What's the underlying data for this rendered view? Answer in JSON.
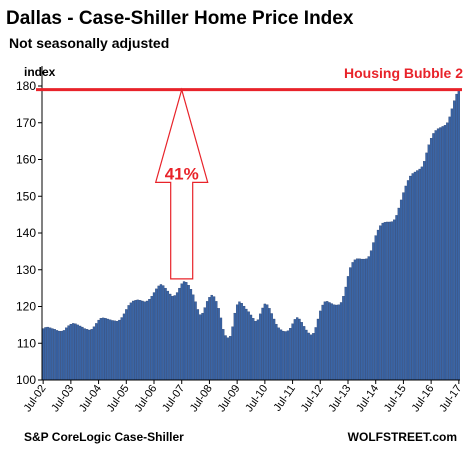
{
  "chart_data": {
    "type": "bar",
    "title": "Dallas - Case-Shiller Home Price Index",
    "subtitle": "Not seasonally adjusted",
    "ylabel": "index",
    "ylim": [
      100,
      180
    ],
    "yticks": [
      100,
      110,
      120,
      130,
      140,
      150,
      160,
      170,
      180
    ],
    "x_tick_labels": [
      "Jul-02",
      "Jul-03",
      "Jul-04",
      "Jul-05",
      "Jul-06",
      "Jul-07",
      "Jul-08",
      "Jul-09",
      "Jul-10",
      "Jul-11",
      "Jul-12",
      "Jul-13",
      "Jul-14",
      "Jul-15",
      "Jul-16",
      "Jul-17"
    ],
    "x_start": "Jul-02",
    "frequency": "monthly",
    "values": [
      114.0,
      114.3,
      114.4,
      114.2,
      114.0,
      113.8,
      113.5,
      113.3,
      113.3,
      113.5,
      114.2,
      114.8,
      115.2,
      115.4,
      115.3,
      115.0,
      114.7,
      114.4,
      114.0,
      113.8,
      113.6,
      113.8,
      114.5,
      115.4,
      116.3,
      116.8,
      116.9,
      116.8,
      116.6,
      116.4,
      116.2,
      116.1,
      116.0,
      116.3,
      117.0,
      118.0,
      119.2,
      120.3,
      121.0,
      121.5,
      121.7,
      121.8,
      121.7,
      121.5,
      121.3,
      121.5,
      122.0,
      122.8,
      123.8,
      124.8,
      125.6,
      126.0,
      125.7,
      125.0,
      124.2,
      123.4,
      122.8,
      123.0,
      123.8,
      125.0,
      126.2,
      126.8,
      126.6,
      125.8,
      124.7,
      123.2,
      121.3,
      119.2,
      117.8,
      118.2,
      119.7,
      121.4,
      122.5,
      123.1,
      122.7,
      121.4,
      119.5,
      116.9,
      113.8,
      112.1,
      111.5,
      111.9,
      114.5,
      118.2,
      120.5,
      121.3,
      120.9,
      120.1,
      119.3,
      118.6,
      117.7,
      116.8,
      116.0,
      116.4,
      118.0,
      119.6,
      120.7,
      120.5,
      119.5,
      118.1,
      116.6,
      115.2,
      114.2,
      113.7,
      113.3,
      113.2,
      113.4,
      114.1,
      115.3,
      116.5,
      117.0,
      116.6,
      115.7,
      114.6,
      113.6,
      112.8,
      112.3,
      112.7,
      114.3,
      116.6,
      118.8,
      120.4,
      121.3,
      121.4,
      121.1,
      120.8,
      120.5,
      120.4,
      120.5,
      121.1,
      122.8,
      125.3,
      128.2,
      130.6,
      132.0,
      132.7,
      133.0,
      133.0,
      132.9,
      132.9,
      133.0,
      133.6,
      135.2,
      137.4,
      139.3,
      140.8,
      142.0,
      142.7,
      142.9,
      143.0,
      143.0,
      143.1,
      143.6,
      144.8,
      146.8,
      149.0,
      151.0,
      152.8,
      154.3,
      155.5,
      156.2,
      156.6,
      157.0,
      157.4,
      158.0,
      159.5,
      161.8,
      164.0,
      165.8,
      167.1,
      167.9,
      168.4,
      168.7,
      169.0,
      169.3,
      170.0,
      171.6,
      173.8,
      176.0,
      177.8,
      179.0
    ],
    "reference_line": {
      "value": 179,
      "label": "Housing Bubble 2"
    },
    "annotation": {
      "label": "41%",
      "arrow_x": "Jul-07",
      "from_value": 127.5,
      "to_value": 179
    },
    "grid": false,
    "legend": "none"
  },
  "footer": {
    "source": "S&P CoreLogic Case-Shiller",
    "brand": "WOLFSTREET.com"
  },
  "colors": {
    "bar_fill": "#3a65a6",
    "bar_edge": "#1d3566",
    "accent_red": "#e8232a",
    "axis": "#000000"
  }
}
